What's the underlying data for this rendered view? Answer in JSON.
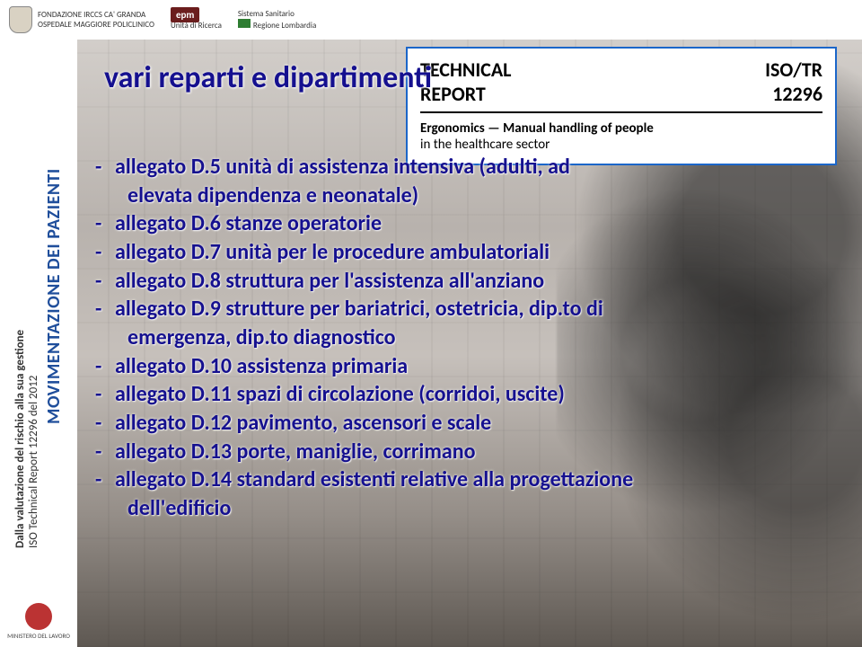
{
  "header": {
    "org1": "FONDAZIONE IRCCS CA' GRANDA",
    "org1b": "OSPEDALE MAGGIORE POLICLINICO",
    "epm": "epm",
    "epm_sub": "Unità di Ricerca",
    "regione": "Regione Lombardia",
    "sistema": "Sistema Sanitario"
  },
  "sidebar": {
    "title": "MOVIMENTAZIONE DEI PAZIENTI",
    "sub1": "ISO Technical Report 12296 del 2012",
    "sub2": "Dalla valutazione del rischio alla sua gestione",
    "bottom": "MINISTERO DEL LAVORO"
  },
  "iso": {
    "left1": "TECHNICAL",
    "left2": "REPORT",
    "right1": "ISO/TR",
    "right2": "12296",
    "line1": "Ergonomics — Manual handling of people",
    "line2": "in the healthcare sector"
  },
  "title": "vari reparti e dipartimenti",
  "items": [
    {
      "bullet": "-",
      "text": "allegato D.5 unità di assistenza intensiva (adulti, ad",
      "cont": "elevata dipendenza e neonatale)"
    },
    {
      "bullet": "-",
      "text": "allegato D.6 stanze operatorie"
    },
    {
      "bullet": "-",
      "text": "allegato D.7 unità per le procedure ambulatoriali"
    },
    {
      "bullet": "-",
      "text": "allegato D.8 struttura per l'assistenza all'anziano"
    },
    {
      "bullet": "-",
      "text": "allegato D.9 strutture per bariatrici, ostetricia, dip.to di",
      "cont": "emergenza, dip.to diagnostico"
    },
    {
      "bullet": "-",
      "text": "allegato D.10 assistenza primaria"
    },
    {
      "bullet": "-",
      "text": "allegato D.11 spazi di circolazione (corridoi, uscite)"
    },
    {
      "bullet": "-",
      "text": "allegato D.12 pavimento, ascensori e scale"
    },
    {
      "bullet": "-",
      "text": "allegato D.13 porte, maniglie, corrimano"
    },
    {
      "bullet": "-",
      "text": "allegato D.14 standard esistenti relative alla progettazione",
      "cont": "dell'edificio"
    }
  ],
  "colors": {
    "title_color": "#15108f",
    "iso_border": "#1b66c9",
    "sidebar_title": "#1f4e9b"
  }
}
